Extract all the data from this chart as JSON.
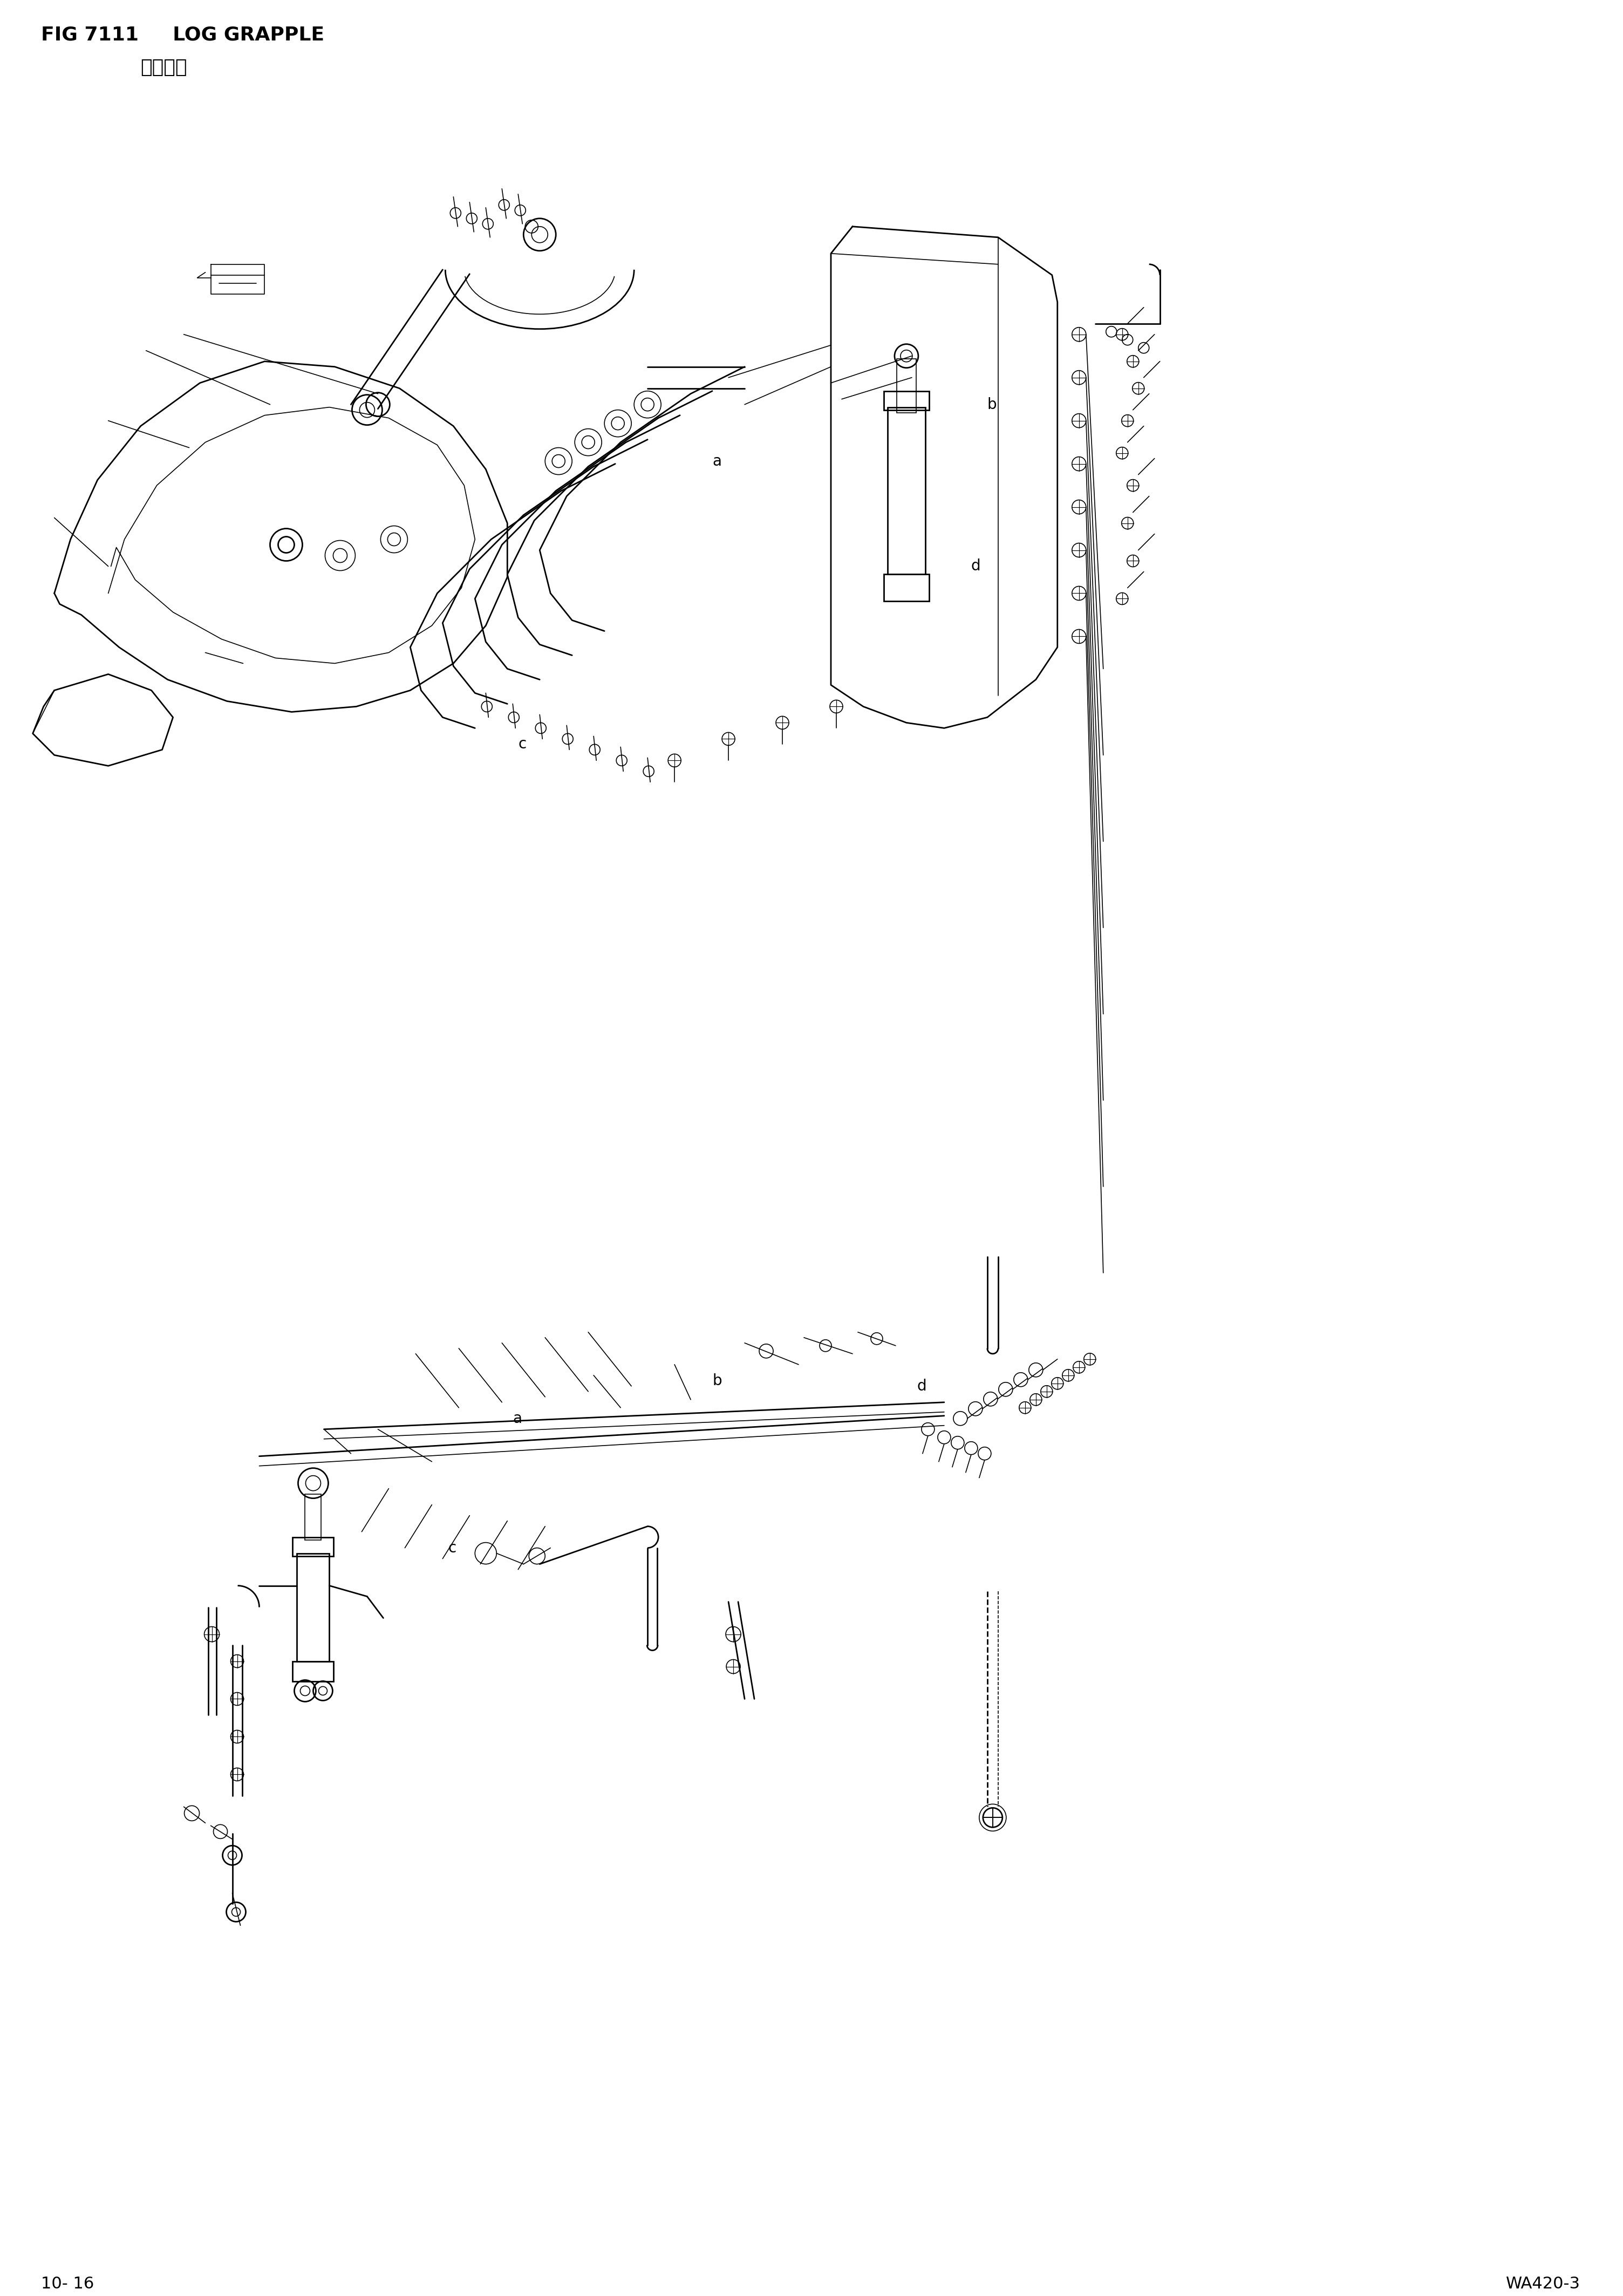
{
  "title_line1": "FIG 7111     LOG GRAPPLE",
  "title_line2": "原木抓具",
  "page_left": "10- 16",
  "page_right": "WA420-3",
  "bg_color": "#ffffff",
  "line_color": "#000000",
  "fig_width": 30.08,
  "fig_height": 42.55,
  "title_fontsize": 26,
  "subtitle_fontsize": 26,
  "page_fontsize": 22,
  "label_fontsize": 20,
  "lw_main": 2.0,
  "lw_thin": 1.2,
  "lw_thick": 3.0
}
